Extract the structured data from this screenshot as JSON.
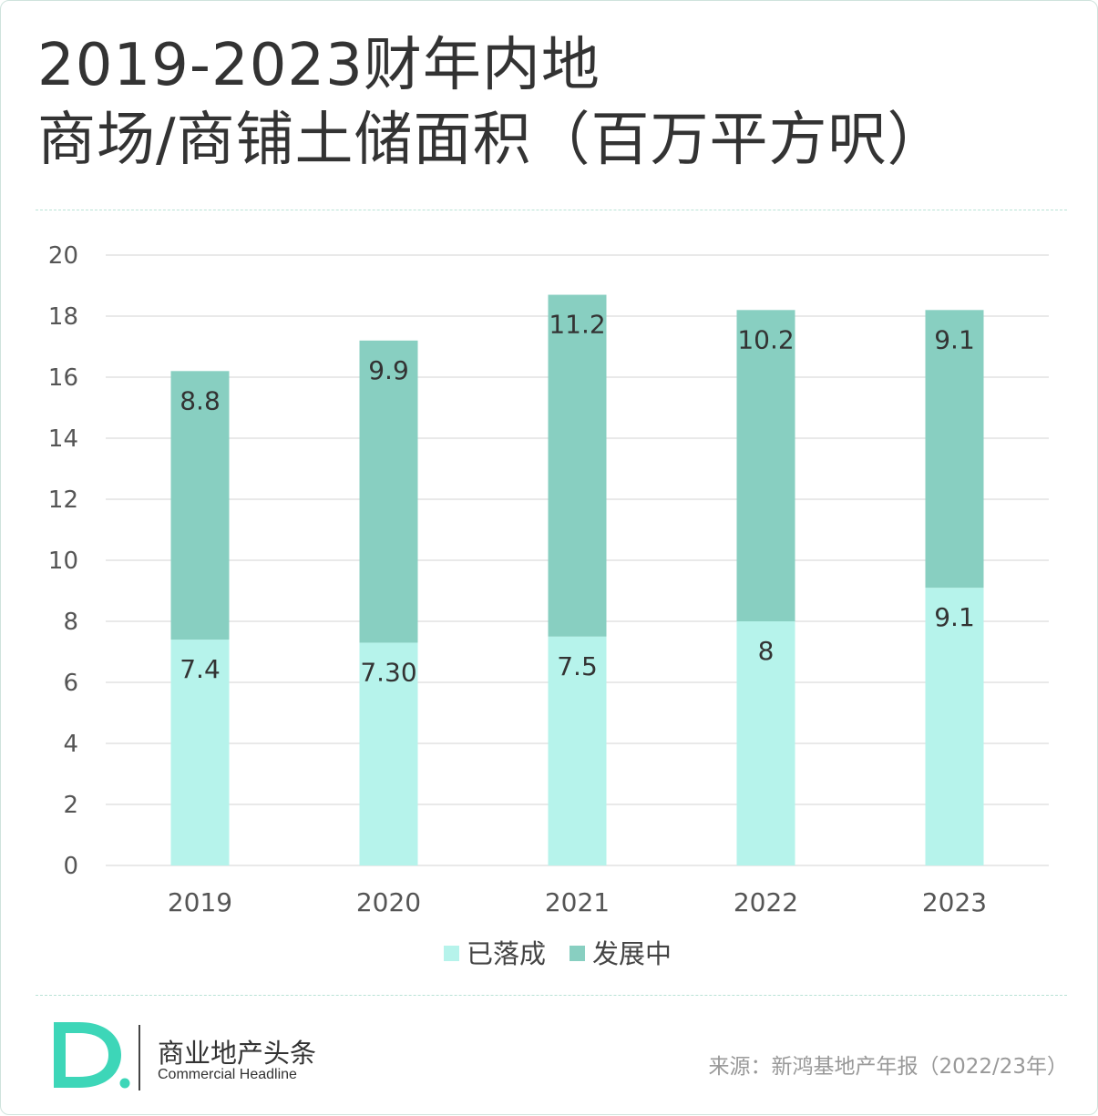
{
  "header": {
    "title_line1": "2019-2023财年内地",
    "title_line2": "商场/商铺土储面积（百万平方呎）"
  },
  "chart_data": {
    "type": "bar",
    "stacked": true,
    "categories": [
      "2019",
      "2020",
      "2021",
      "2022",
      "2023"
    ],
    "series": [
      {
        "name": "已落成",
        "values": [
          7.4,
          7.3,
          7.5,
          8,
          9.1
        ],
        "labels": [
          "7.4",
          "7.30",
          "7.5",
          "8",
          "9.1"
        ],
        "color": "#b6f3eb"
      },
      {
        "name": "发展中",
        "values": [
          8.8,
          9.9,
          11.2,
          10.2,
          9.1
        ],
        "labels": [
          "8.8",
          "9.9",
          "11.2",
          "10.2",
          "9.1"
        ],
        "color": "#88cfc1"
      }
    ],
    "ylim": [
      0,
      20
    ],
    "yticks": [
      "0",
      "2",
      "4",
      "6",
      "8",
      "10",
      "12",
      "14",
      "16",
      "18",
      "20"
    ],
    "grid": true,
    "legend_position": "bottom"
  },
  "colors": {
    "gridline": "#dcdcdc",
    "rule": "#b9e3d6",
    "logo_teal": "#3dd6b8"
  },
  "footer": {
    "logo_icon": "D-logo-icon",
    "brand_cn": "商业地产头条",
    "brand_en": "Commercial Headline",
    "source": "来源：新鸿基地产年报（2022/23年）"
  }
}
